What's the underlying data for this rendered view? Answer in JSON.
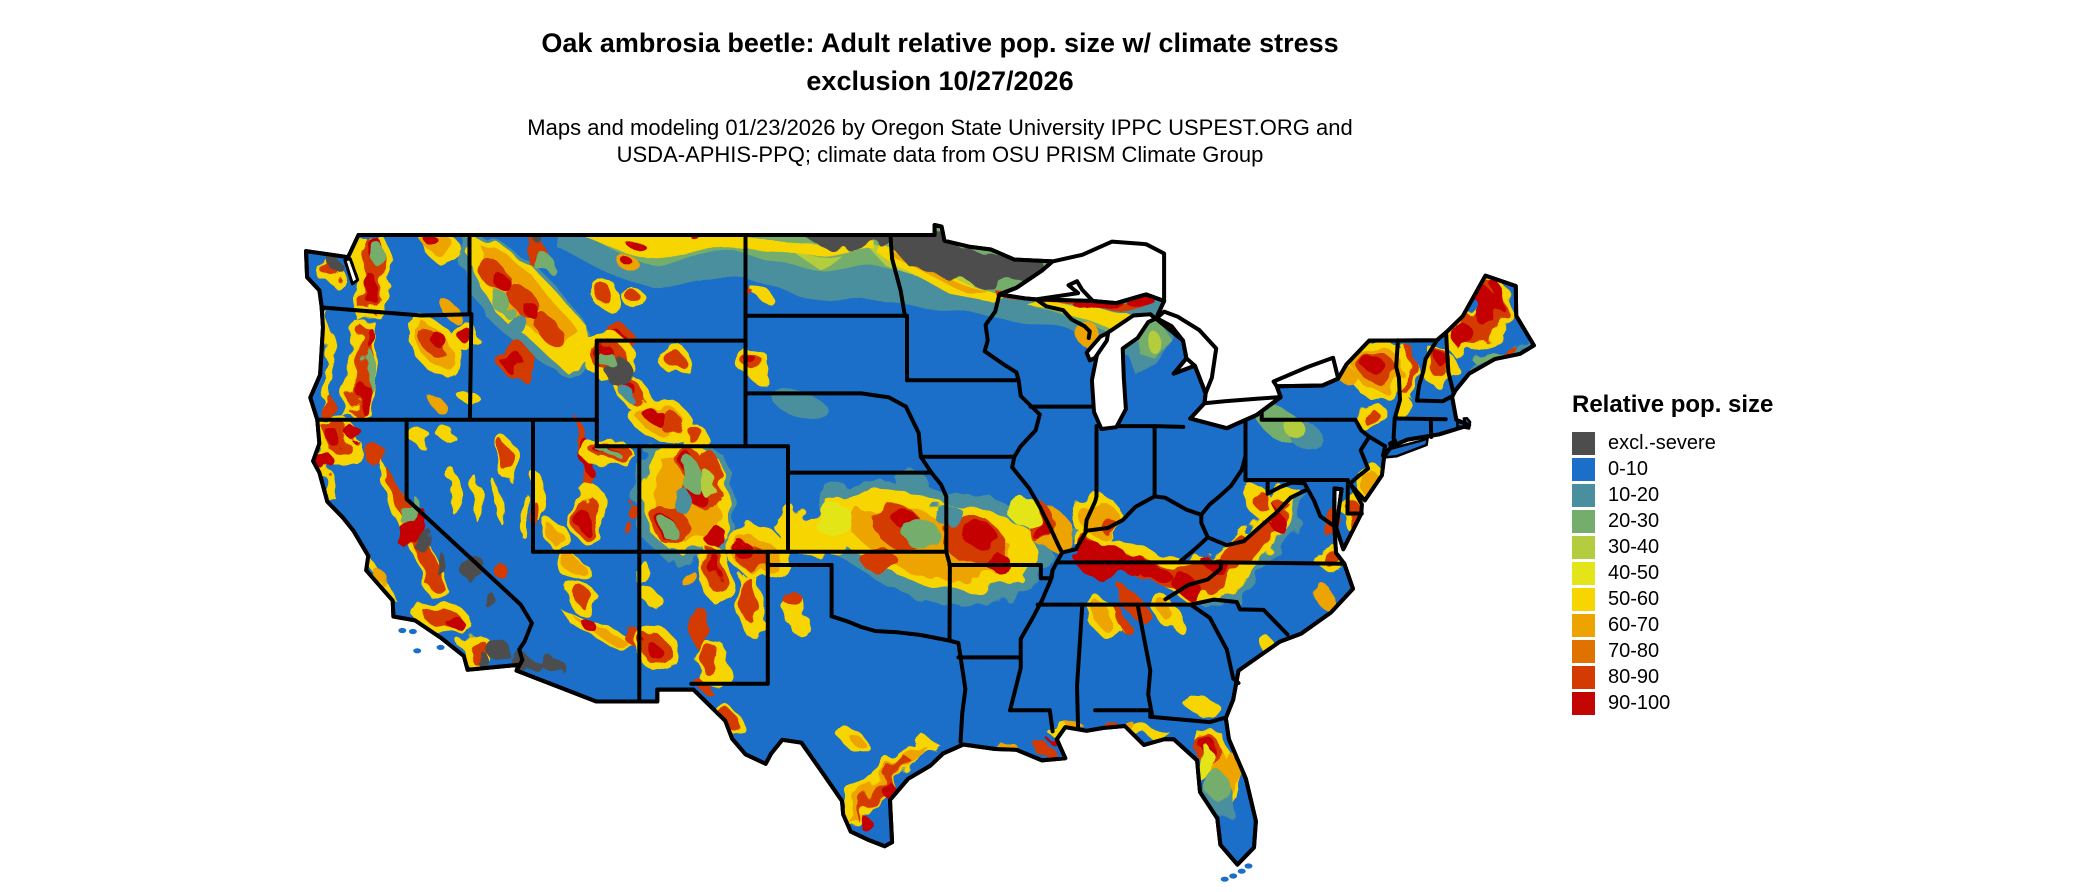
{
  "header": {
    "title_line1": "Oak ambrosia beetle: Adult relative pop. size w/ climate stress",
    "title_line2": "exclusion 10/27/2026",
    "subtitle_line1": "Maps and modeling 01/23/2026 by Oregon State University IPPC USPEST.ORG and",
    "subtitle_line2": "USDA-APHIS-PPQ; climate data from OSU PRISM Climate Group"
  },
  "legend": {
    "title": "Relative pop. size",
    "entries": [
      {
        "label": "excl.-severe",
        "color": "#4d4d4d"
      },
      {
        "label": "0-10",
        "color": "#1b6fc8"
      },
      {
        "label": "10-20",
        "color": "#4a8f9e"
      },
      {
        "label": "20-30",
        "color": "#74ad6c"
      },
      {
        "label": "30-40",
        "color": "#b3cd3e"
      },
      {
        "label": "40-50",
        "color": "#e4e518"
      },
      {
        "label": "50-60",
        "color": "#f6d500"
      },
      {
        "label": "60-70",
        "color": "#eea400"
      },
      {
        "label": "70-80",
        "color": "#e07200"
      },
      {
        "label": "80-90",
        "color": "#d43b02"
      },
      {
        "label": "90-100",
        "color": "#c40603"
      }
    ]
  },
  "map": {
    "border_color": "#000000",
    "water_color": "#ffffff"
  }
}
